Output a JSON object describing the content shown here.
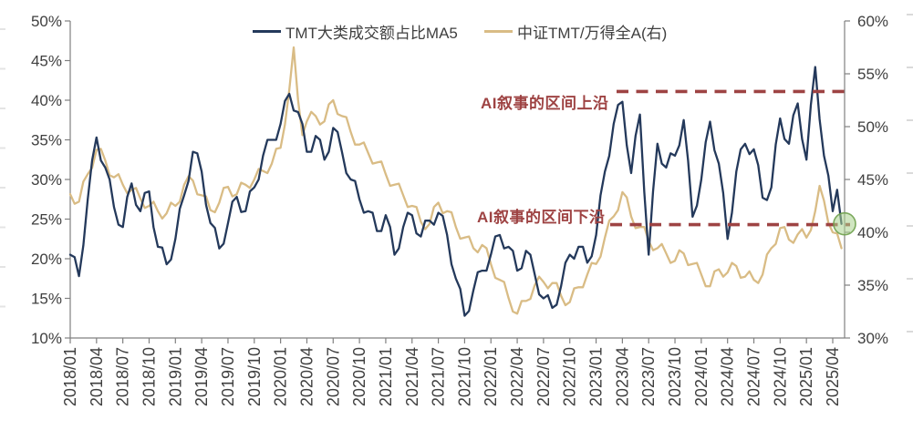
{
  "page": {
    "background": "#FFFFFF"
  },
  "chart_data": {
    "type": "line",
    "title": "",
    "x_axis": {
      "labels": [
        "2018/01",
        "2018/04",
        "2018/07",
        "2018/10",
        "2019/01",
        "2019/04",
        "2019/07",
        "2019/10",
        "2020/01",
        "2020/04",
        "2020/07",
        "2020/10",
        "2021/01",
        "2021/04",
        "2021/07",
        "2021/10",
        "2022/01",
        "2022/04",
        "2022/07",
        "2022/10",
        "2023/01",
        "2023/04",
        "2023/07",
        "2023/10",
        "2024/01",
        "2024/04",
        "2024/07",
        "2024/10",
        "2025/01",
        "2025/04"
      ],
      "months_per_label": 3
    },
    "left_axis": {
      "min": 10,
      "max": 50,
      "step": 5,
      "format": "percent"
    },
    "right_axis": {
      "min": 30,
      "max": 60,
      "step": 5,
      "format": "percent"
    },
    "colors": {
      "axis_line": "#808080",
      "tick_text": "#3f3f3f",
      "edge_dash": "#dadada"
    },
    "series": [
      {
        "name": "TMT大类成交额占比MA5",
        "axis": "left",
        "color": "#24395B",
        "x_start": "2018/01",
        "x_step_months": 0.5,
        "values": [
          20.5,
          20.2,
          17.8,
          21.7,
          27.5,
          32.4,
          35.3,
          32.4,
          31.5,
          30.0,
          26.5,
          24.3,
          24.0,
          27.8,
          29.5,
          26.8,
          26.0,
          28.3,
          28.5,
          24.0,
          21.5,
          21.4,
          19.3,
          19.9,
          22.5,
          26.3,
          28.0,
          29.8,
          33.5,
          33.3,
          31.0,
          26.8,
          24.5,
          23.9,
          21.3,
          21.9,
          24.5,
          27.2,
          27.8,
          25.9,
          26.0,
          28.5,
          29.0,
          30.0,
          33.0,
          35.0,
          35.0,
          35.0,
          37.0,
          39.9,
          40.8,
          38.7,
          38.5,
          37.0,
          33.5,
          33.5,
          35.5,
          35.0,
          32.5,
          33.5,
          36.5,
          36.0,
          33.5,
          30.8,
          30.0,
          29.8,
          27.5,
          25.8,
          26.0,
          25.8,
          23.5,
          23.5,
          25.5,
          24.0,
          20.5,
          21.3,
          24.0,
          25.8,
          25.5,
          23.2,
          22.8,
          24.8,
          24.8,
          24.3,
          25.8,
          25.4,
          23.0,
          19.3,
          17.5,
          16.2,
          12.8,
          13.4,
          16.0,
          18.3,
          18.5,
          18.5,
          20.5,
          22.8,
          23.0,
          21.3,
          21.5,
          21.0,
          18.5,
          18.8,
          21.0,
          20.5,
          18.0,
          15.5,
          15.0,
          15.4,
          13.8,
          14.2,
          16.5,
          19.5,
          20.5,
          20.0,
          21.5,
          21.5,
          19.5,
          20.3,
          23.0,
          28.0,
          31.0,
          33.0,
          37.0,
          39.4,
          39.8,
          34.3,
          30.8,
          35.5,
          38.2,
          28.4,
          20.5,
          28.5,
          34.5,
          32.0,
          31.5,
          33.3,
          33.0,
          34.3,
          37.5,
          32.4,
          25.3,
          26.7,
          30.0,
          34.7,
          37.3,
          33.7,
          32.0,
          28.3,
          22.5,
          25.8,
          31.0,
          33.8,
          34.5,
          33.2,
          33.8,
          31.8,
          27.7,
          27.4,
          29.0,
          34.4,
          37.7,
          35.1,
          34.5,
          38.1,
          39.6,
          35.1,
          32.5,
          39.4,
          44.2,
          37.6,
          33.0,
          30.5,
          26.0,
          28.7,
          24.4
        ]
      },
      {
        "name": "中证TMT/万得全A(右)",
        "axis": "right",
        "color": "#D9BC85",
        "x_start": "2018/01",
        "x_step_months": 0.5,
        "values": [
          43.6,
          42.7,
          42.9,
          44.8,
          45.5,
          46.1,
          47.8,
          47.9,
          46.8,
          45.4,
          45.2,
          45.5,
          44.5,
          43.7,
          44.0,
          44.2,
          43.2,
          42.3,
          42.5,
          42.9,
          42.0,
          41.3,
          41.8,
          42.8,
          42.5,
          42.9,
          44.5,
          45.3,
          44.9,
          43.6,
          43.5,
          43.4,
          42.1,
          41.9,
          42.8,
          44.2,
          44.3,
          43.4,
          43.6,
          44.7,
          44.5,
          44.2,
          45.0,
          46.0,
          45.8,
          45.6,
          46.5,
          47.9,
          48.0,
          50.2,
          53.5,
          57.5,
          52.5,
          49.2,
          50.5,
          51.4,
          51.0,
          50.2,
          50.5,
          52.1,
          52.5,
          51.2,
          51.0,
          50.9,
          49.5,
          48.3,
          48.3,
          48.5,
          47.5,
          46.5,
          46.6,
          46.7,
          45.5,
          44.4,
          44.5,
          44.6,
          43.5,
          42.4,
          42.5,
          42.4,
          41.0,
          40.3,
          40.8,
          42.4,
          42.8,
          41.8,
          42.0,
          41.9,
          40.5,
          39.4,
          39.5,
          39.6,
          38.5,
          38.1,
          38.8,
          38.5,
          37.0,
          35.7,
          35.5,
          35.3,
          33.8,
          32.5,
          32.3,
          33.5,
          33.5,
          33.7,
          35.0,
          35.8,
          35.3,
          34.7,
          35.2,
          35.2,
          34.0,
          33.1,
          33.4,
          34.7,
          34.8,
          34.8,
          36.0,
          37.1,
          37.0,
          37.7,
          39.5,
          41.1,
          41.5,
          42.1,
          43.8,
          43.3,
          41.5,
          40.4,
          40.5,
          40.5,
          39.2,
          38.3,
          38.5,
          38.9,
          38.0,
          37.1,
          37.3,
          38.3,
          38.0,
          36.9,
          37.0,
          37.1,
          36.0,
          34.9,
          34.9,
          36.3,
          36.5,
          35.8,
          36.2,
          37.1,
          36.8,
          35.7,
          35.8,
          36.3,
          35.5,
          35.2,
          36.0,
          37.9,
          38.5,
          38.9,
          40.4,
          40.5,
          39.3,
          39.0,
          39.8,
          40.3,
          39.5,
          40.2,
          42.0,
          44.4,
          43.0,
          40.9,
          40.0,
          39.9,
          38.5
        ]
      }
    ],
    "annotations": [
      {
        "label": "AI叙事的区间上沿",
        "axis": "left",
        "value": 41.1,
        "style": "dashed",
        "color": "#9E4343"
      },
      {
        "label": "AI叙事的区间下沿",
        "axis": "left",
        "value": 24.3,
        "style": "dashed",
        "color": "#9E4343"
      }
    ],
    "marker": {
      "shape": "circle",
      "axis": "left",
      "value": 24.4,
      "fill": "#A9D18E",
      "stroke": "#6FA14E",
      "meaning": "current reading at lower bound"
    }
  }
}
